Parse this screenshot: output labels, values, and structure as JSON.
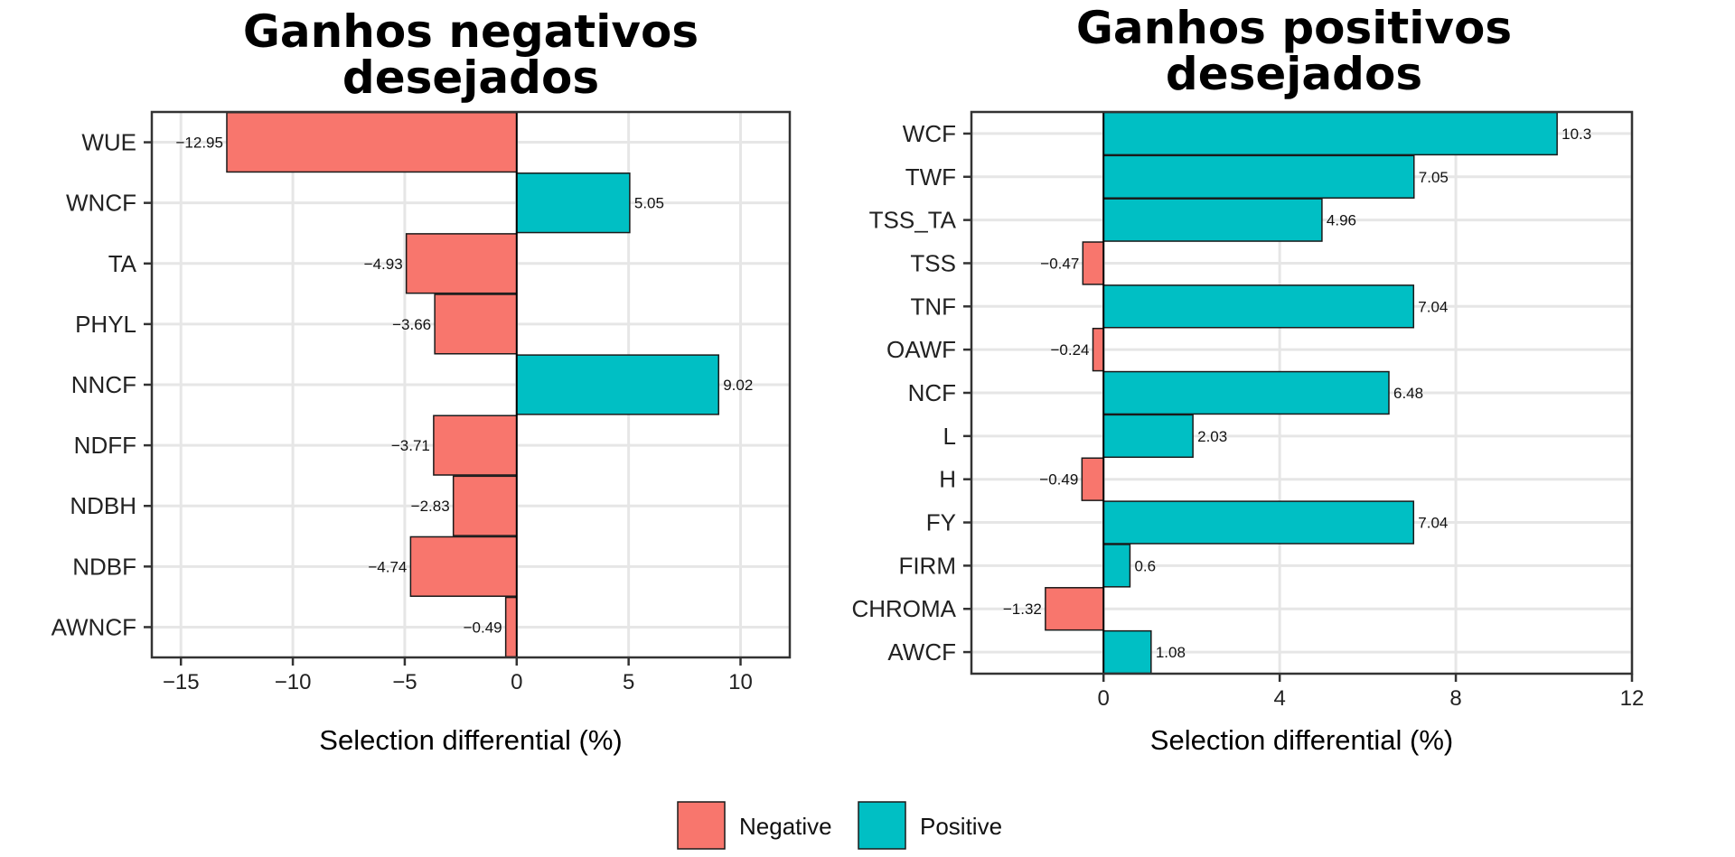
{
  "colors": {
    "negative": "#F8766D",
    "positive": "#00BFC4"
  },
  "legend": {
    "items": [
      {
        "key": "negative",
        "label": "Negative"
      },
      {
        "key": "positive",
        "label": "Positive"
      }
    ]
  },
  "chart_data": [
    {
      "type": "bar",
      "orientation": "horizontal",
      "title_lines": [
        "Ganhos negativos",
        "desejados"
      ],
      "xlabel": "Selection differential (%)",
      "ylabel": "",
      "xlim": [
        -16.3,
        12.2
      ],
      "xticks": [
        -15,
        -10,
        -5,
        0,
        5,
        10
      ],
      "xtick_labels": [
        "−15",
        "−10",
        "−5",
        "0",
        "5",
        "10"
      ],
      "categories": [
        "WUE",
        "WNCF",
        "TA",
        "PHYL",
        "NNCF",
        "NDFF",
        "NDBH",
        "NDBF",
        "AWNCF"
      ],
      "values": [
        -12.95,
        5.05,
        -4.93,
        -3.66,
        9.02,
        -3.71,
        -2.83,
        -4.74,
        -0.49
      ],
      "value_labels": [
        "−12.95",
        "5.05",
        "−4.93",
        "−3.66",
        "9.02",
        "−3.71",
        "−2.83",
        "−4.74",
        "−0.49"
      ],
      "grid": true
    },
    {
      "type": "bar",
      "orientation": "horizontal",
      "title_lines": [
        "Ganhos positivos",
        "desejados"
      ],
      "xlabel": "Selection differential (%)",
      "ylabel": "",
      "xlim": [
        -3.0,
        12.0
      ],
      "xticks": [
        0,
        4,
        8,
        12
      ],
      "xtick_labels": [
        "0",
        "4",
        "8",
        "12"
      ],
      "categories": [
        "WCF",
        "TWF",
        "TSS_TA",
        "TSS",
        "TNF",
        "OAWF",
        "NCF",
        "L",
        "H",
        "FY",
        "FIRM",
        "CHROMA",
        "AWCF"
      ],
      "values": [
        10.3,
        7.05,
        4.96,
        -0.47,
        7.04,
        -0.24,
        6.48,
        2.03,
        -0.49,
        7.04,
        0.6,
        -1.32,
        1.08
      ],
      "value_labels": [
        "10.3",
        "7.05",
        "4.96",
        "−0.47",
        "7.04",
        "−0.24",
        "6.48",
        "2.03",
        "−0.49",
        "7.04",
        "0.6",
        "−1.32",
        "1.08"
      ],
      "grid": true
    }
  ]
}
